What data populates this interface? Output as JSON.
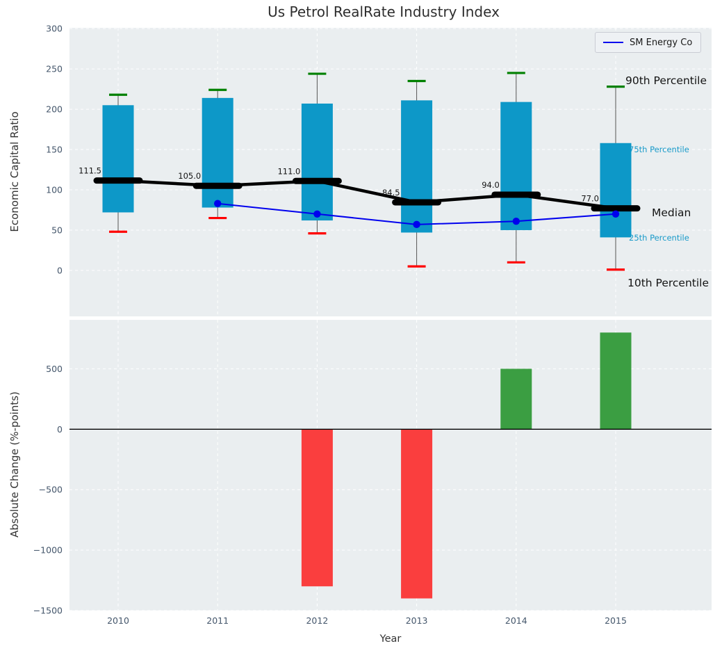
{
  "figure": {
    "title": "Us Petrol RealRate Industry Index",
    "panel_background": "#eaeef0"
  },
  "legend": {
    "label": "SM Energy Co"
  },
  "axes": {
    "top": {
      "ylabel": "Economic Capital Ratio"
    },
    "bottom": {
      "ylabel": "Absolute Change (%-points)",
      "xlabel": "Year"
    }
  },
  "annotations": {
    "p90": "90th Percentile",
    "p75": "75th Percentile",
    "median": "Median",
    "p25": "25th Percentile",
    "p10": "10th Percentile"
  },
  "colors": {
    "box": "#0d98c8",
    "p90_cap": "#008000",
    "p10_cap": "#ff0000",
    "whisker": "#555555",
    "median_line": "#000000",
    "company_line": "#0000ee",
    "bar_positive": "#3b9e42",
    "bar_negative": "#fa3e3e",
    "grid": "#ffffff",
    "tick_label": "#44566b",
    "zero_line": "#000000"
  },
  "chart_data": [
    {
      "type": "boxplot",
      "title": "Us Petrol RealRate Industry Index",
      "ylabel": "Economic Capital Ratio",
      "xlabel": "",
      "categories": [
        "2010",
        "2011",
        "2012",
        "2013",
        "2014",
        "2015"
      ],
      "ylim": [
        -57,
        301
      ],
      "yticks": [
        300,
        250,
        200,
        150,
        100,
        50,
        0
      ],
      "ytick_labels": [
        "300",
        "250",
        "200",
        "150",
        "100",
        "50",
        "0"
      ],
      "grid": true,
      "legend_position": "upper right",
      "percentiles": {
        "p10": [
          48,
          65,
          46,
          5,
          10,
          1
        ],
        "p25": [
          72,
          78,
          62,
          47,
          50,
          41
        ],
        "median": [
          111.5,
          105.0,
          111.0,
          84.5,
          94.0,
          77.0
        ],
        "p75": [
          205,
          214,
          207,
          211,
          209,
          158
        ],
        "p90": [
          218,
          224,
          244,
          235,
          245,
          228
        ]
      },
      "median_labels": [
        "111.5",
        "105.0",
        "111.0",
        "84.5",
        "94.0",
        "77.0"
      ],
      "series": [
        {
          "name": "SM Energy Co",
          "values": [
            null,
            83,
            70,
            57,
            61,
            70
          ]
        }
      ]
    },
    {
      "type": "bar",
      "title": "",
      "ylabel": "Absolute Change (%-points)",
      "xlabel": "Year",
      "categories": [
        "2010",
        "2011",
        "2012",
        "2013",
        "2014",
        "2015"
      ],
      "values": [
        null,
        null,
        -1300,
        -1400,
        500,
        800
      ],
      "ylim": [
        -1500,
        905
      ],
      "yticks": [
        500,
        0,
        -500,
        -1000,
        -1500
      ],
      "ytick_labels": [
        "500",
        "0",
        "−500",
        "−1000",
        "−1500"
      ],
      "grid": true
    }
  ]
}
